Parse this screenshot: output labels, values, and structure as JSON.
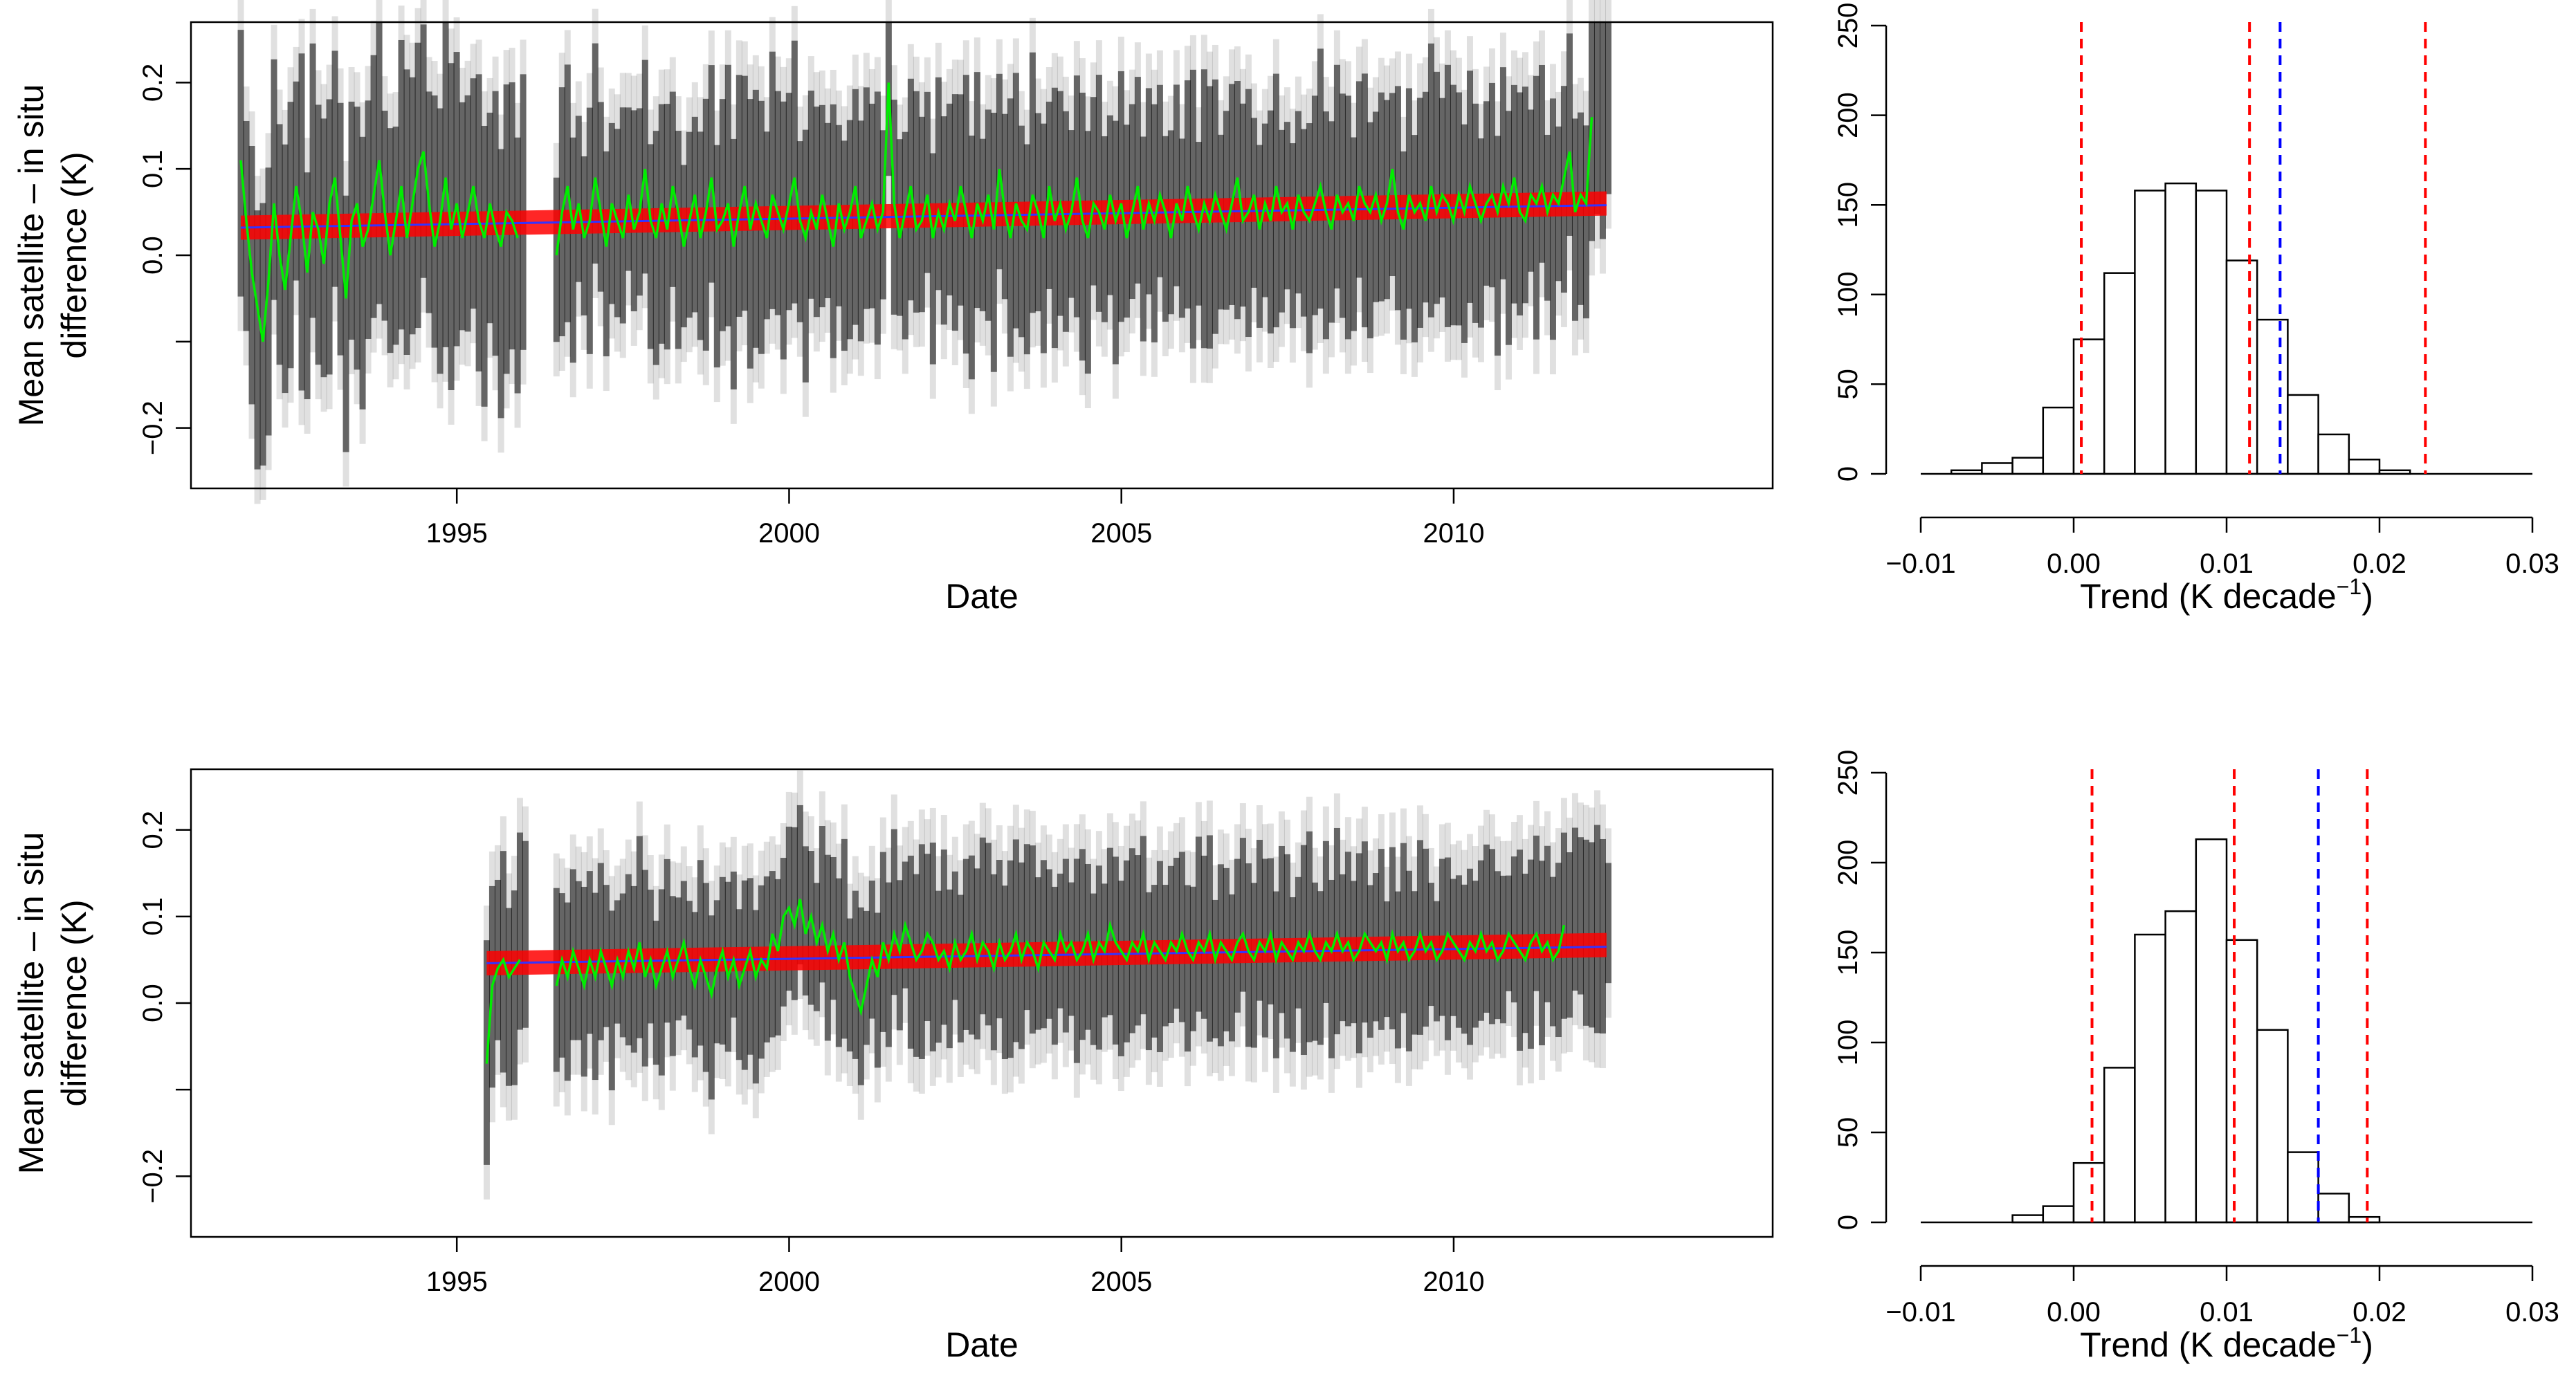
{
  "chart_data": [
    {
      "id": "ts-top",
      "type": "line",
      "title": "",
      "xlabel": "Date",
      "ylabel_line1": "Mean satellite – in situ",
      "ylabel_line2": "difference (K)",
      "xlim": [
        1991.0,
        2014.8
      ],
      "ylim": [
        -0.27,
        0.27
      ],
      "xticks": [
        1995,
        2000,
        2005,
        2010
      ],
      "xtick_labels": [
        "1995",
        "2000",
        "2005",
        "2010"
      ],
      "yticks": [
        -0.2,
        -0.1,
        0.0,
        0.1,
        0.2
      ],
      "ytick_labels": [
        "−0.2",
        "",
        "0.0",
        "0.1",
        "0.2"
      ],
      "colors": {
        "ensemble": "#000000",
        "mean": "#00ee00",
        "trend": "#ff0000",
        "trend_center": "#3333ff"
      },
      "series": [
        {
          "name": "ensemble spread",
          "segments": [
            {
              "start": 1991.75,
              "end": 1996.0,
              "lower": -0.18,
              "upper": 0.2
            },
            {
              "start": 1996.5,
              "end": 2012.3,
              "lower": -0.12,
              "upper": 0.2
            }
          ]
        },
        {
          "name": "ensemble mean",
          "segments": [
            {
              "start": 1991.75,
              "end": 1996.0,
              "step": 0.0833,
              "values": [
                0.11,
                0.04,
                -0.02,
                -0.06,
                -0.1,
                -0.03,
                0.06,
                0.0,
                -0.04,
                0.02,
                0.08,
                0.04,
                -0.02,
                0.05,
                0.03,
                -0.01,
                0.06,
                0.09,
                0.02,
                -0.05,
                0.04,
                0.06,
                0.01,
                0.03,
                0.07,
                0.11,
                0.05,
                0.0,
                0.04,
                0.08,
                0.02,
                0.06,
                0.1,
                0.12,
                0.06,
                0.01,
                0.04,
                0.09,
                0.03,
                0.06,
                0.02,
                0.05,
                0.08,
                0.04,
                0.02,
                0.06,
                0.03,
                0.01,
                0.05,
                0.04,
                0.02
              ]
            },
            {
              "start": 1996.5,
              "end": 2012.3,
              "step": 0.0833,
              "values": [
                0.0,
                0.05,
                0.08,
                0.03,
                0.06,
                0.02,
                0.04,
                0.09,
                0.05,
                0.01,
                0.06,
                0.04,
                0.02,
                0.07,
                0.03,
                0.05,
                0.1,
                0.04,
                0.02,
                0.06,
                0.03,
                0.08,
                0.05,
                0.01,
                0.04,
                0.07,
                0.02,
                0.05,
                0.09,
                0.03,
                0.04,
                0.06,
                0.01,
                0.05,
                0.08,
                0.03,
                0.06,
                0.04,
                0.02,
                0.07,
                0.05,
                0.03,
                0.06,
                0.09,
                0.04,
                0.02,
                0.05,
                0.03,
                0.07,
                0.04,
                0.01,
                0.06,
                0.03,
                0.05,
                0.08,
                0.02,
                0.04,
                0.06,
                0.03,
                0.05,
                0.2,
                0.06,
                0.02,
                0.05,
                0.08,
                0.03,
                0.04,
                0.07,
                0.02,
                0.05,
                0.03,
                0.06,
                0.04,
                0.08,
                0.05,
                0.02,
                0.06,
                0.04,
                0.07,
                0.03,
                0.1,
                0.05,
                0.02,
                0.06,
                0.04,
                0.03,
                0.07,
                0.05,
                0.02,
                0.08,
                0.04,
                0.06,
                0.03,
                0.05,
                0.09,
                0.04,
                0.02,
                0.06,
                0.05,
                0.03,
                0.07,
                0.04,
                0.06,
                0.02,
                0.05,
                0.08,
                0.03,
                0.06,
                0.04,
                0.07,
                0.05,
                0.02,
                0.06,
                0.04,
                0.08,
                0.05,
                0.03,
                0.06,
                0.04,
                0.07,
                0.05,
                0.03,
                0.06,
                0.09,
                0.04,
                0.05,
                0.07,
                0.03,
                0.06,
                0.04,
                0.08,
                0.05,
                0.06,
                0.03,
                0.07,
                0.05,
                0.04,
                0.06,
                0.08,
                0.05,
                0.03,
                0.07,
                0.05,
                0.06,
                0.04,
                0.08,
                0.06,
                0.05,
                0.07,
                0.04,
                0.06,
                0.1,
                0.05,
                0.03,
                0.07,
                0.05,
                0.06,
                0.04,
                0.08,
                0.05,
                0.07,
                0.06,
                0.04,
                0.07,
                0.05,
                0.08,
                0.06,
                0.04,
                0.06,
                0.07,
                0.05,
                0.08,
                0.06,
                0.09,
                0.05,
                0.04,
                0.07,
                0.06,
                0.08,
                0.05,
                0.07,
                0.06,
                0.09,
                0.12,
                0.05,
                0.07,
                0.06,
                0.16
              ]
            }
          ]
        },
        {
          "name": "trend fit",
          "x": [
            1991.75,
            2012.3
          ],
          "y": [
            0.032,
            0.058
          ]
        }
      ]
    },
    {
      "id": "hist-top",
      "type": "bar",
      "title": "",
      "xlabel": "Trend (K decade",
      "xlabel_exponent": "−1",
      "xlabel_close": ")",
      "ylabel": "",
      "xlim": [
        -0.01,
        0.03
      ],
      "ylim": [
        0,
        250
      ],
      "xticks": [
        -0.01,
        0.0,
        0.01,
        0.02,
        0.03
      ],
      "xtick_labels": [
        "−0.01",
        "0.00",
        "0.01",
        "0.02",
        "0.03"
      ],
      "yticks": [
        0,
        50,
        100,
        150,
        200,
        250
      ],
      "ytick_labels": [
        "0",
        "50",
        "100",
        "150",
        "200",
        "250"
      ],
      "bin_edges": [
        -0.01,
        -0.008,
        -0.006,
        -0.004,
        -0.002,
        0.0,
        0.002,
        0.004,
        0.006,
        0.008,
        0.01,
        0.012,
        0.014,
        0.016,
        0.018,
        0.02,
        0.022,
        0.024,
        0.026,
        0.028,
        0.03
      ],
      "counts": [
        0,
        2,
        6,
        9,
        37,
        75,
        112,
        158,
        162,
        158,
        119,
        86,
        44,
        22,
        8,
        2,
        0,
        0,
        0,
        0
      ],
      "vlines_red": [
        0.0005,
        0.0115,
        0.023
      ],
      "vline_blue": 0.0135,
      "colors": {
        "red": "#ff0000",
        "blue": "#0000ff",
        "bar": "#000000"
      }
    },
    {
      "id": "ts-bottom",
      "type": "line",
      "title": "",
      "xlabel": "Date",
      "ylabel_line1": "Mean satellite – in situ",
      "ylabel_line2": "difference (K)",
      "xlim": [
        1991.0,
        2014.8
      ],
      "ylim": [
        -0.27,
        0.27
      ],
      "xticks": [
        1995,
        2000,
        2005,
        2010
      ],
      "xtick_labels": [
        "1995",
        "2000",
        "2005",
        "2010"
      ],
      "yticks": [
        -0.2,
        -0.1,
        0.0,
        0.1,
        0.2
      ],
      "ytick_labels": [
        "−0.2",
        "",
        "0.0",
        "0.1",
        "0.2"
      ],
      "colors": {
        "ensemble": "#000000",
        "mean": "#00ee00",
        "trend": "#ff0000",
        "trend_center": "#3333ff"
      },
      "series": [
        {
          "name": "ensemble spread",
          "segments": [
            {
              "start": 1995.45,
              "end": 1996.0,
              "lower": -0.15,
              "upper": 0.13
            },
            {
              "start": 1996.5,
              "end": 2012.3,
              "lower": -0.07,
              "upper": 0.17
            }
          ]
        },
        {
          "name": "ensemble mean",
          "segments": [
            {
              "start": 1995.45,
              "end": 1996.0,
              "step": 0.0833,
              "values": [
                -0.07,
                0.02,
                0.04,
                0.05,
                0.03,
                0.04,
                0.05
              ]
            },
            {
              "start": 1996.5,
              "end": 2012.3,
              "step": 0.0833,
              "values": [
                0.02,
                0.05,
                0.03,
                0.06,
                0.04,
                0.02,
                0.05,
                0.03,
                0.06,
                0.04,
                0.02,
                0.05,
                0.03,
                0.06,
                0.04,
                0.07,
                0.03,
                0.05,
                0.02,
                0.04,
                0.06,
                0.03,
                0.05,
                0.07,
                0.04,
                0.02,
                0.05,
                0.03,
                0.01,
                0.04,
                0.06,
                0.03,
                0.05,
                0.02,
                0.04,
                0.06,
                0.03,
                0.05,
                0.04,
                0.08,
                0.06,
                0.1,
                0.11,
                0.09,
                0.12,
                0.08,
                0.1,
                0.07,
                0.09,
                0.06,
                0.08,
                0.05,
                0.07,
                0.03,
                0.01,
                -0.01,
                0.02,
                0.05,
                0.03,
                0.07,
                0.05,
                0.08,
                0.06,
                0.09,
                0.07,
                0.05,
                0.06,
                0.08,
                0.07,
                0.05,
                0.06,
                0.04,
                0.07,
                0.05,
                0.06,
                0.08,
                0.05,
                0.07,
                0.06,
                0.04,
                0.07,
                0.05,
                0.06,
                0.08,
                0.05,
                0.07,
                0.06,
                0.04,
                0.07,
                0.06,
                0.05,
                0.08,
                0.06,
                0.07,
                0.05,
                0.06,
                0.08,
                0.05,
                0.07,
                0.06,
                0.09,
                0.07,
                0.06,
                0.05,
                0.07,
                0.06,
                0.08,
                0.05,
                0.07,
                0.06,
                0.05,
                0.07,
                0.06,
                0.08,
                0.06,
                0.05,
                0.07,
                0.06,
                0.08,
                0.05,
                0.07,
                0.06,
                0.05,
                0.07,
                0.08,
                0.06,
                0.05,
                0.07,
                0.06,
                0.08,
                0.05,
                0.07,
                0.06,
                0.05,
                0.07,
                0.06,
                0.08,
                0.06,
                0.05,
                0.07,
                0.06,
                0.08,
                0.06,
                0.07,
                0.05,
                0.06,
                0.08,
                0.07,
                0.06,
                0.07,
                0.05,
                0.08,
                0.06,
                0.07,
                0.05,
                0.06,
                0.08,
                0.06,
                0.07,
                0.05,
                0.06,
                0.08,
                0.07,
                0.06,
                0.05,
                0.07,
                0.06,
                0.08,
                0.06,
                0.07,
                0.05,
                0.06,
                0.08,
                0.07,
                0.06,
                0.05,
                0.07,
                0.08,
                0.06,
                0.07,
                0.05,
                0.06,
                0.09
              ]
            }
          ]
        },
        {
          "name": "trend fit",
          "x": [
            1995.45,
            2012.3
          ],
          "y": [
            0.046,
            0.065
          ]
        }
      ]
    },
    {
      "id": "hist-bottom",
      "type": "bar",
      "title": "",
      "xlabel": "Trend (K decade",
      "xlabel_exponent": "−1",
      "xlabel_close": ")",
      "ylabel": "",
      "xlim": [
        -0.01,
        0.03
      ],
      "ylim": [
        0,
        250
      ],
      "xticks": [
        -0.01,
        0.0,
        0.01,
        0.02,
        0.03
      ],
      "xtick_labels": [
        "−0.01",
        "0.00",
        "0.01",
        "0.02",
        "0.03"
      ],
      "yticks": [
        0,
        50,
        100,
        150,
        200,
        250
      ],
      "ytick_labels": [
        "0",
        "50",
        "100",
        "150",
        "200",
        "250"
      ],
      "bin_edges": [
        -0.01,
        -0.008,
        -0.006,
        -0.004,
        -0.002,
        0.0,
        0.002,
        0.004,
        0.006,
        0.008,
        0.01,
        0.012,
        0.014,
        0.016,
        0.018,
        0.02,
        0.022,
        0.024,
        0.026,
        0.028,
        0.03
      ],
      "counts": [
        0,
        0,
        0,
        4,
        9,
        33,
        86,
        160,
        173,
        213,
        157,
        107,
        39,
        16,
        3,
        0,
        0,
        0,
        0,
        0
      ],
      "vlines_red": [
        0.0012,
        0.0105,
        0.0192
      ],
      "vline_blue": 0.016,
      "colors": {
        "red": "#ff0000",
        "blue": "#0000ff",
        "bar": "#000000"
      }
    }
  ]
}
